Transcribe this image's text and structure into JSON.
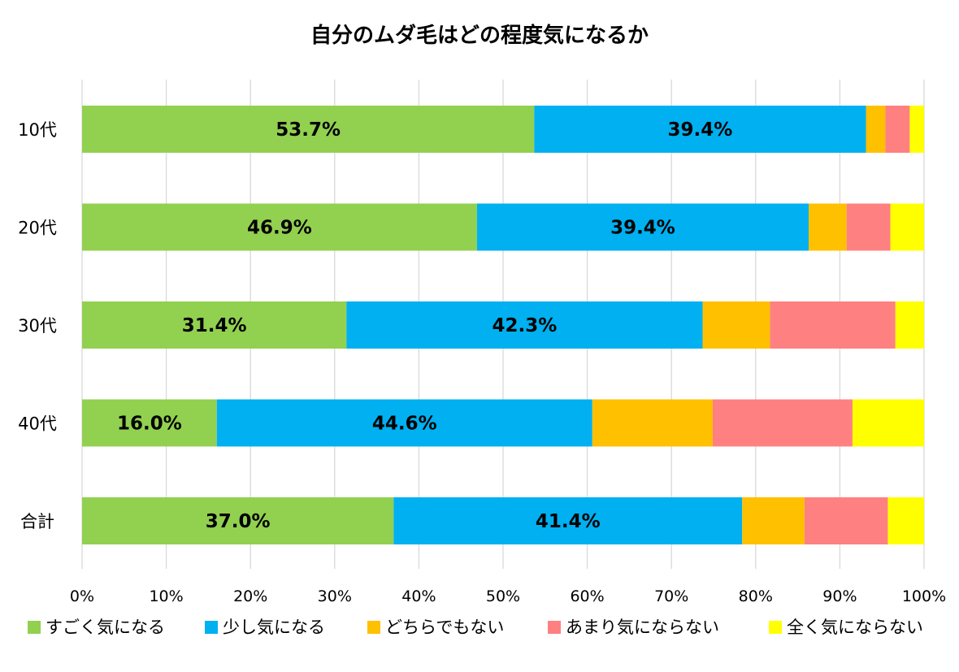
{
  "chart_data": {
    "type": "bar",
    "orientation": "horizontal",
    "stacked": "percent",
    "title": "自分のムダ毛はどの程度気になるか",
    "categories": [
      "10代",
      "20代",
      "30代",
      "40代",
      "合計"
    ],
    "series": [
      {
        "name": "すごく気になる",
        "color": "#92D050",
        "values": [
          53.7,
          46.9,
          31.4,
          16.0,
          37.0
        ],
        "labels": [
          "53.7%",
          "46.9%",
          "31.4%",
          "16.0%",
          "37.0%"
        ]
      },
      {
        "name": "少し気になる",
        "color": "#00B0F0",
        "values": [
          39.4,
          39.4,
          42.3,
          44.6,
          41.4
        ],
        "labels": [
          "39.4%",
          "39.4%",
          "42.3%",
          "44.6%",
          "41.4%"
        ]
      },
      {
        "name": "どちらでもない",
        "color": "#FFC000",
        "values": [
          2.3,
          4.5,
          8.0,
          14.3,
          7.4
        ]
      },
      {
        "name": "あまり気にならない",
        "color": "#FF8080",
        "values": [
          2.9,
          5.2,
          14.9,
          16.6,
          9.9
        ]
      },
      {
        "name": "全く気にならない",
        "color": "#FFFF00",
        "values": [
          1.7,
          4.0,
          3.4,
          8.5,
          4.3
        ]
      }
    ],
    "x_ticks": [
      "0%",
      "10%",
      "20%",
      "30%",
      "40%",
      "50%",
      "60%",
      "70%",
      "80%",
      "90%",
      "100%"
    ],
    "xlim": [
      0,
      100
    ],
    "grid": "vertical",
    "legend_position": "bottom"
  }
}
